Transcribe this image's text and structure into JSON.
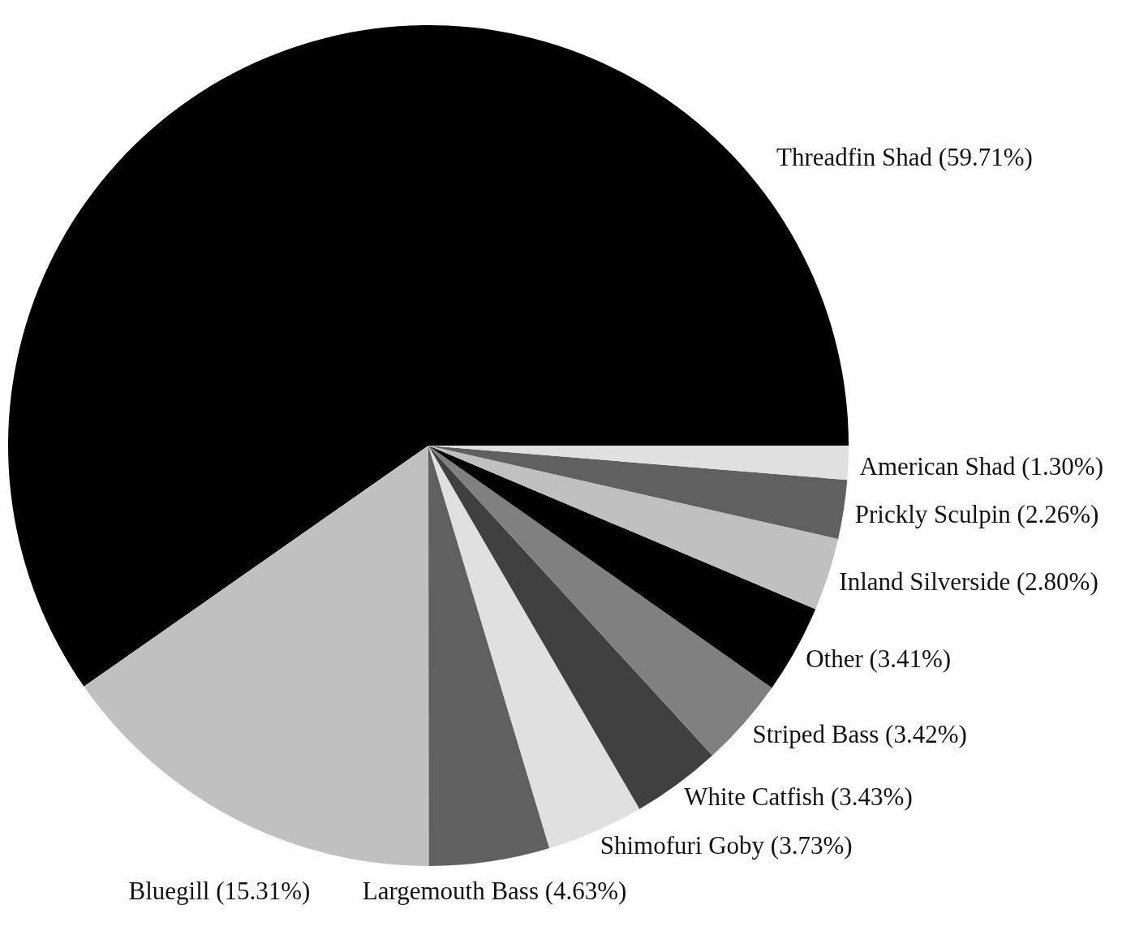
{
  "chart_data": {
    "type": "pie",
    "categories": [
      "Threadfin Shad",
      "Bluegill",
      "Largemouth Bass",
      "Shimofuri Goby",
      "White Catfish",
      "Striped Bass",
      "Other",
      "Inland Silverside",
      "Prickly Sculpin",
      "American Shad"
    ],
    "values": [
      59.71,
      15.31,
      4.63,
      3.73,
      3.43,
      3.42,
      3.41,
      2.8,
      2.26,
      1.3
    ],
    "colors": [
      "#000000",
      "#c0c0c0",
      "#606060",
      "#e0e0e0",
      "#404040",
      "#808080",
      "#000000",
      "#c0c0c0",
      "#606060",
      "#e0e0e0"
    ],
    "value_labels": [
      "(59.71%)",
      "(15.31%)",
      "(4.63%)",
      "(3.73%)",
      "(3.43%)",
      "(3.42%)",
      "(3.41%)",
      "(2.80%)",
      "(2.26%)",
      "(1.30%)"
    ]
  }
}
